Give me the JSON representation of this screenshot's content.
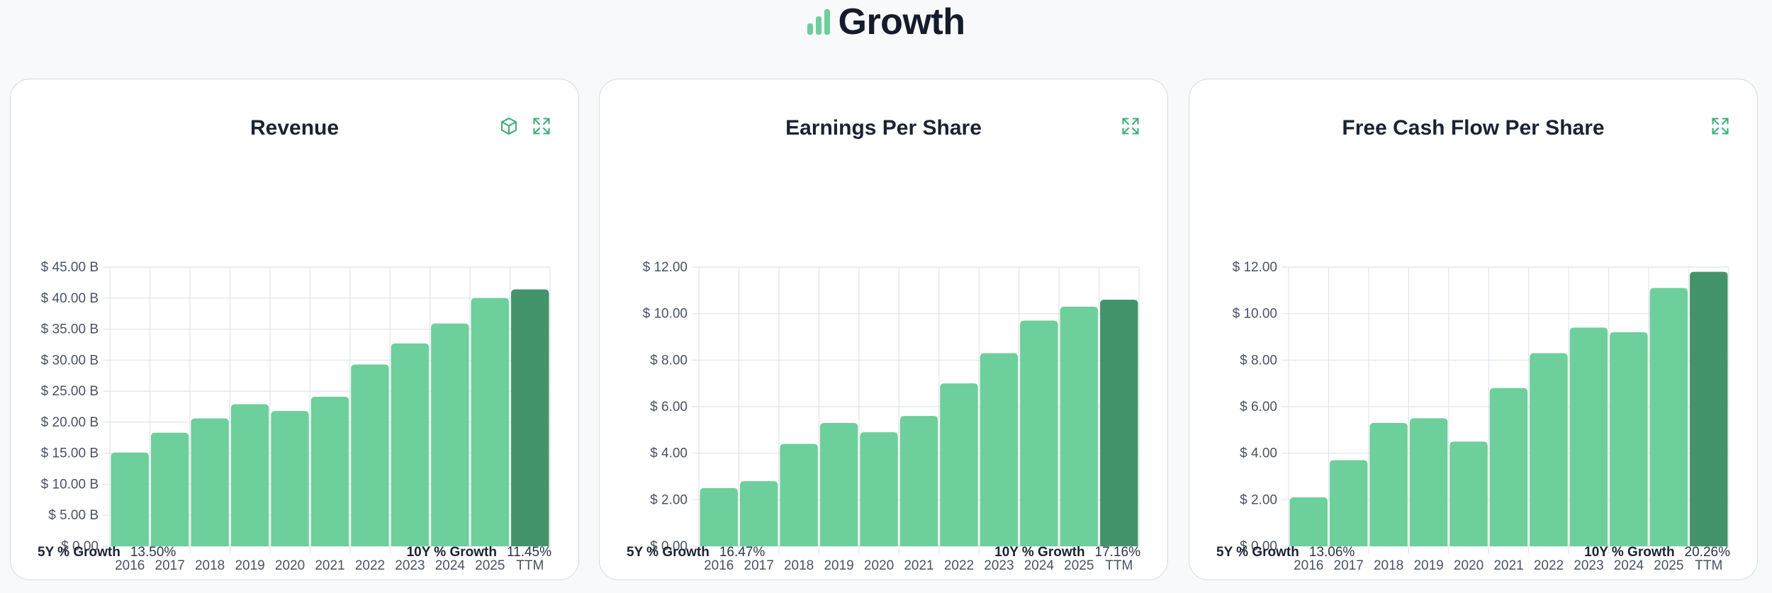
{
  "header": {
    "title": "Growth",
    "icon": "bar-chart-icon",
    "icon_color": "#6dcf9c"
  },
  "colors": {
    "bar": "#6dcf9c",
    "bar_ttm": "#44946b",
    "grid": "#e1e4e8",
    "accent": "#3fae7a"
  },
  "cards": [
    {
      "title": "Revenue",
      "icons": [
        "cube-icon",
        "expand-icon"
      ],
      "five_year_label": "5Y % Growth",
      "five_year_value": "13.50%",
      "ten_year_label": "10Y % Growth",
      "ten_year_value": "11.45%"
    },
    {
      "title": "Earnings Per Share",
      "icons": [
        "expand-icon"
      ],
      "five_year_label": "5Y % Growth",
      "five_year_value": "16.47%",
      "ten_year_label": "10Y % Growth",
      "ten_year_value": "17.16%"
    },
    {
      "title": "Free Cash Flow Per Share",
      "icons": [
        "expand-icon"
      ],
      "five_year_label": "5Y % Growth",
      "five_year_value": "13.06%",
      "ten_year_label": "10Y % Growth",
      "ten_year_value": "20.26%"
    }
  ],
  "chart_data": [
    {
      "type": "bar",
      "title": "Revenue",
      "categories": [
        "2016",
        "2017",
        "2018",
        "2019",
        "2020",
        "2021",
        "2022",
        "2023",
        "2024",
        "2025",
        "TTM"
      ],
      "values": [
        15.1,
        18.3,
        20.6,
        22.9,
        21.8,
        24.1,
        29.3,
        32.7,
        35.9,
        40.0,
        41.4
      ],
      "ylim": [
        0,
        45
      ],
      "yticks": [
        0,
        5,
        10,
        15,
        20,
        25,
        30,
        35,
        40,
        45
      ],
      "ytick_labels": [
        "$ 0.00",
        "$ 5.00 B",
        "$ 10.00 B",
        "$ 15.00 B",
        "$ 20.00 B",
        "$ 25.00 B",
        "$ 30.00 B",
        "$ 35.00 B",
        "$ 40.00 B",
        "$ 45.00 B"
      ],
      "grid": true,
      "highlight_last": true
    },
    {
      "type": "bar",
      "title": "Earnings Per Share",
      "categories": [
        "2016",
        "2017",
        "2018",
        "2019",
        "2020",
        "2021",
        "2022",
        "2023",
        "2024",
        "2025",
        "TTM"
      ],
      "values": [
        2.5,
        2.8,
        4.4,
        5.3,
        4.9,
        5.6,
        7.0,
        8.3,
        9.7,
        10.3,
        10.6
      ],
      "ylim": [
        0,
        12
      ],
      "yticks": [
        0,
        2,
        4,
        6,
        8,
        10,
        12
      ],
      "ytick_labels": [
        "$ 0.00",
        "$ 2.00",
        "$ 4.00",
        "$ 6.00",
        "$ 8.00",
        "$ 10.00",
        "$ 12.00"
      ],
      "grid": true,
      "highlight_last": true
    },
    {
      "type": "bar",
      "title": "Free Cash Flow Per Share",
      "categories": [
        "2016",
        "2017",
        "2018",
        "2019",
        "2020",
        "2021",
        "2022",
        "2023",
        "2024",
        "2025",
        "TTM"
      ],
      "values": [
        2.1,
        3.7,
        5.3,
        5.5,
        4.5,
        6.8,
        8.3,
        9.4,
        9.2,
        11.1,
        11.8
      ],
      "ylim": [
        0,
        12
      ],
      "yticks": [
        0,
        2,
        4,
        6,
        8,
        10,
        12
      ],
      "ytick_labels": [
        "$ 0.00",
        "$ 2.00",
        "$ 4.00",
        "$ 6.00",
        "$ 8.00",
        "$ 10.00",
        "$ 12.00"
      ],
      "grid": true,
      "highlight_last": true
    }
  ]
}
